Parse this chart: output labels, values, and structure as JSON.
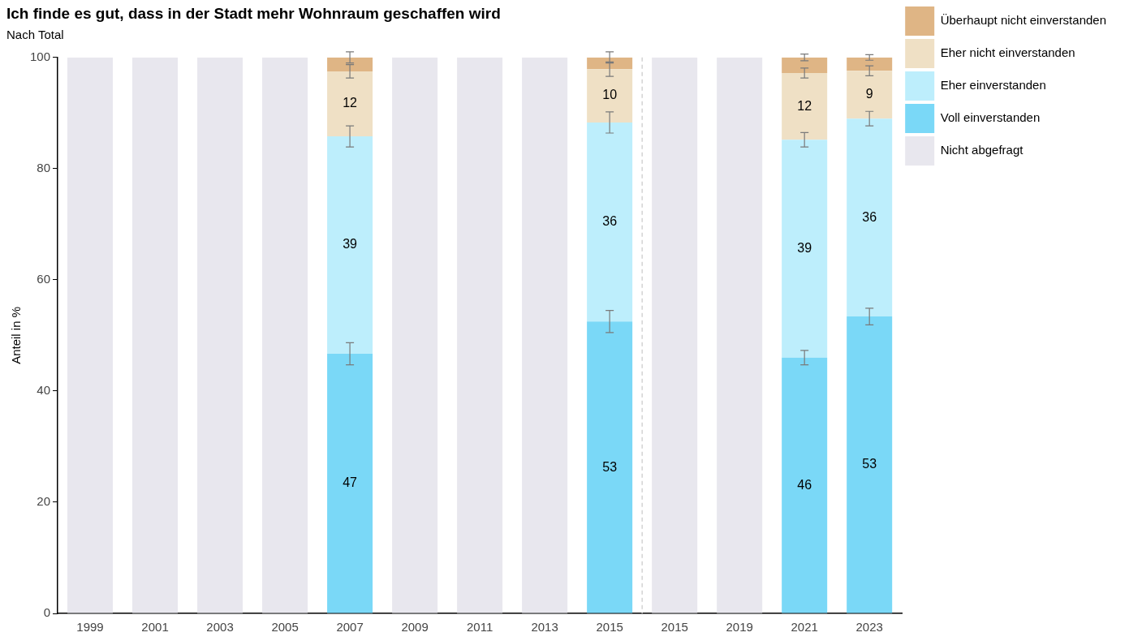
{
  "chart_data": {
    "type": "bar",
    "title": "Ich finde es gut, dass in der Stadt mehr Wohnraum geschaffen wird",
    "subtitle": "Nach Total",
    "ylabel": "Anteil in %",
    "categories": [
      "1999",
      "2001",
      "2003",
      "2005",
      "2007",
      "2009",
      "2011",
      "2013",
      "2015",
      "2015",
      "2019",
      "2021",
      "2023"
    ],
    "stacked": true,
    "ylim": [
      0,
      100
    ],
    "yticks": [
      0,
      20,
      40,
      60,
      80,
      100
    ],
    "grid": false,
    "legend": "top right",
    "series": [
      {
        "name": "Nicht abgefragt",
        "color": "#e8e7ee",
        "values": [
          100,
          100,
          100,
          100,
          null,
          100,
          100,
          100,
          null,
          100,
          100,
          null,
          null
        ]
      },
      {
        "name": "Voll einverstanden",
        "color": "#7ad8f7",
        "values": [
          null,
          null,
          null,
          null,
          46.7,
          null,
          null,
          null,
          52.5,
          null,
          null,
          46.0,
          53.4
        ],
        "errors": [
          null,
          null,
          null,
          null,
          2.0,
          null,
          null,
          null,
          2.0,
          null,
          null,
          1.3,
          1.5
        ],
        "value_labels": [
          null,
          null,
          null,
          null,
          "47",
          null,
          null,
          null,
          "53",
          null,
          null,
          "46",
          "53"
        ]
      },
      {
        "name": "Eher einverstanden",
        "color": "#bdeefc",
        "values": [
          null,
          null,
          null,
          null,
          39.1,
          null,
          null,
          null,
          35.8,
          null,
          null,
          39.2,
          35.6
        ],
        "errors": [
          null,
          null,
          null,
          null,
          1.9,
          null,
          null,
          null,
          1.9,
          null,
          null,
          1.3,
          1.3
        ],
        "value_labels": [
          null,
          null,
          null,
          null,
          "39",
          null,
          null,
          null,
          "36",
          null,
          null,
          "39",
          "36"
        ]
      },
      {
        "name": "Eher nicht einverstanden",
        "color": "#efe0c5",
        "values": [
          null,
          null,
          null,
          null,
          11.7,
          null,
          null,
          null,
          9.6,
          null,
          null,
          12.0,
          8.6
        ],
        "errors": [
          null,
          null,
          null,
          null,
          1.2,
          null,
          null,
          null,
          1.3,
          null,
          null,
          0.9,
          0.9
        ],
        "value_labels": [
          null,
          null,
          null,
          null,
          "12",
          null,
          null,
          null,
          "10",
          null,
          null,
          "12",
          "9"
        ]
      },
      {
        "name": "Überhaupt nicht einverstanden",
        "color": "#dfb585",
        "values": [
          null,
          null,
          null,
          null,
          2.5,
          null,
          null,
          null,
          2.1,
          null,
          null,
          2.8,
          2.4
        ],
        "errors": [
          null,
          null,
          null,
          null,
          1.0,
          null,
          null,
          null,
          1.0,
          null,
          null,
          0.6,
          0.5
        ]
      }
    ]
  }
}
